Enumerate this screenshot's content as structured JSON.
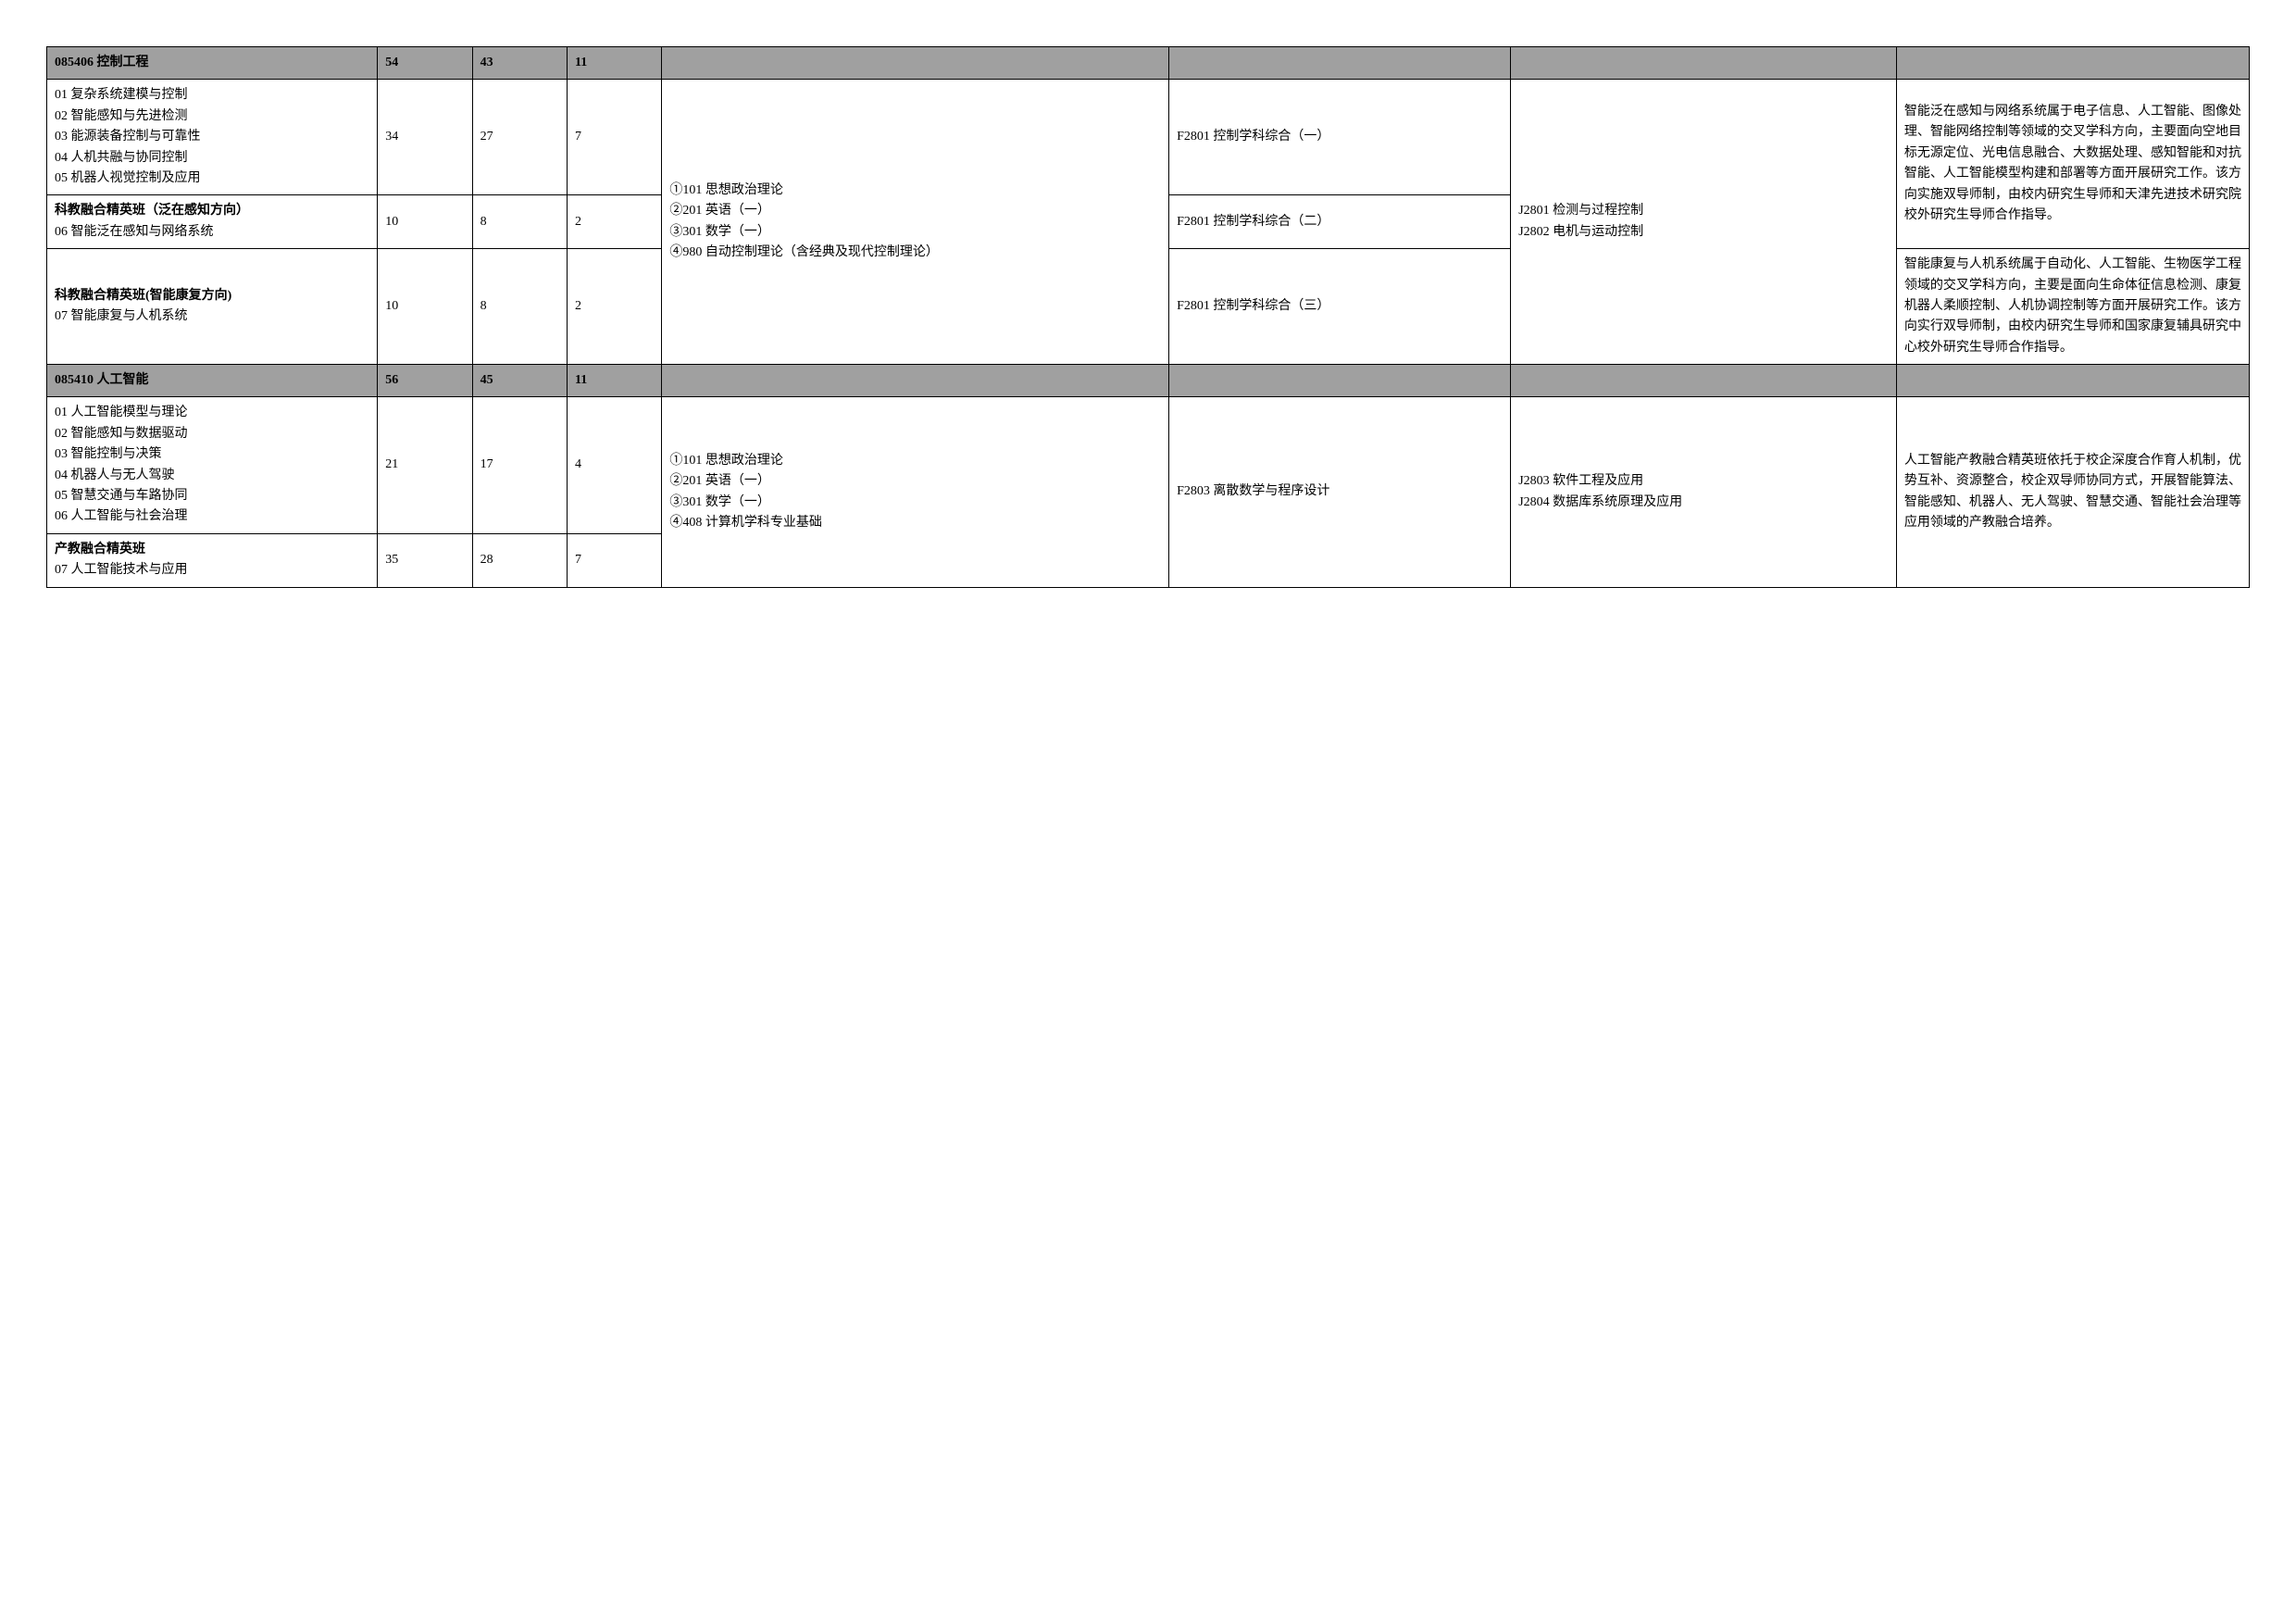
{
  "sections": {
    "s085406": {
      "code": "085406",
      "name": "控制工程",
      "nums": [
        "54",
        "43",
        "11"
      ],
      "rows": [
        {
          "dirs": [
            "01 复杂系统建模与控制",
            "02 智能感知与先进检测",
            "03 能源装备控制与可靠性",
            "04 人机共融与协同控制",
            "05 机器人视觉控制及应用"
          ],
          "nums": [
            "34",
            "27",
            "7"
          ],
          "retest": "F2801 控制学科综合（一）",
          "note": "智能泛在感知与网络系统属于电子信息、人工智能、图像处理、智能网络控制等领域的交叉学科方向，主要面向空地目标无源定位、光电信息融合、大数据处理、感知智能和对抗智能、人工智能模型构建和部署等方面开展研究工作。该方向实施双导师制，由校内研究生导师和天津先进技术研究院校外研究生导师合作指导。"
        },
        {
          "dirsTitle": "科教融合精英班（泛在感知方向）",
          "dirs": [
            "06 智能泛在感知与网络系统"
          ],
          "nums": [
            "10",
            "8",
            "2"
          ],
          "retest": "F2801 控制学科综合（二）"
        },
        {
          "dirsTitle": "科教融合精英班(智能康复方向)",
          "dirs": [
            "07  智能康复与人机系统"
          ],
          "nums": [
            "10",
            "8",
            "2"
          ],
          "retest": "F2801 控制学科综合（三）",
          "note": "智能康复与人机系统属于自动化、人工智能、生物医学工程领域的交叉学科方向，主要是面向生命体征信息检测、康复机器人柔顺控制、人机协调控制等方面开展研究工作。该方向实行双导师制，由校内研究生导师和国家康复辅具研究中心校外研究生导师合作指导。"
        }
      ],
      "exam": [
        "①101 思想政治理论",
        "②201 英语（一）",
        "③301 数学（一）",
        "④980 自动控制理论（含经典及现代控制理论）"
      ],
      "equiv": [
        "J2801 检测与过程控制",
        "J2802 电机与运动控制"
      ]
    },
    "s085410": {
      "code": "085410",
      "name": "人工智能",
      "nums": [
        "56",
        "45",
        "11"
      ],
      "rows": [
        {
          "dirs": [
            "01 人工智能模型与理论",
            "02  智能感知与数据驱动",
            "03  智能控制与决策",
            "04  机器人与无人驾驶",
            "05  智慧交通与车路协同",
            "06  人工智能与社会治理"
          ],
          "nums": [
            "21",
            "17",
            "4"
          ]
        },
        {
          "dirsTitle": "产教融合精英班",
          "dirs": [
            "07  人工智能技术与应用"
          ],
          "nums": [
            "35",
            "28",
            "7"
          ]
        }
      ],
      "exam": [
        "①101 思想政治理论",
        "②201 英语（一）",
        "③301 数学（一）",
        "④408 计算机学科专业基础"
      ],
      "retest": "F2803 离散数学与程序设计",
      "equiv": [
        "J2803 软件工程及应用",
        "J2804 数据库系统原理及应用"
      ],
      "note": "人工智能产教融合精英班依托于校企深度合作育人机制，优势互补、资源整合，校企双导师协同方式，开展智能算法、智能感知、机器人、无人驾驶、智慧交通、智能社会治理等应用领域的产教融合培养。"
    }
  }
}
